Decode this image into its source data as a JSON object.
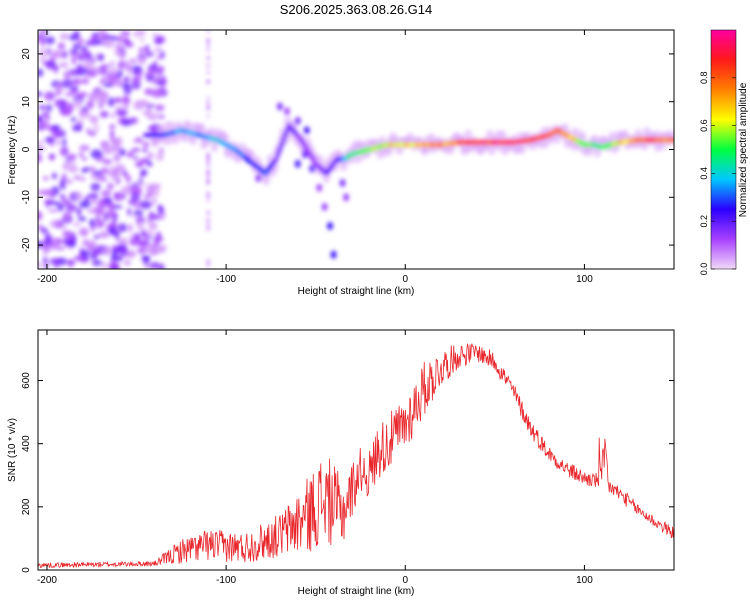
{
  "title": "S206.2025.363.08.26.G14",
  "colors": {
    "line": "#e8262b",
    "axis": "#000000",
    "colorbar_stops": [
      "#f2d9f7",
      "#a640ff",
      "#2a00ff",
      "#00c8ff",
      "#00ff40",
      "#ffff00",
      "#ff7f00",
      "#ff1a1a",
      "#ff00a0"
    ]
  },
  "chart_data": [
    {
      "type": "heatmap",
      "title": "S206.2025.363.08.26.G14",
      "xlabel": "Height of straight line (km)",
      "ylabel": "Frequency (Hz)",
      "xlim": [
        -205,
        150
      ],
      "ylim": [
        -25,
        25
      ],
      "xticks": [
        -200,
        -100,
        0,
        100
      ],
      "yticks": [
        -20,
        -10,
        0,
        10,
        20
      ],
      "colorbar_label": "Normalized spectral amplitude",
      "colorbar_range": [
        0,
        1
      ],
      "colorbar_ticks": [
        "0.0",
        "0.2",
        "0.4",
        "0.6",
        "0.8"
      ],
      "colorbar_tick_values": [
        0,
        0.2,
        0.4,
        0.6,
        0.8
      ],
      "ridge": {
        "x": [
          -145,
          -135,
          -125,
          -115,
          -105,
          -95,
          -85,
          -78,
          -72,
          -65,
          -58,
          -50,
          -44,
          -38,
          -34,
          -30,
          -20,
          -10,
          0,
          10,
          20,
          30,
          40,
          50,
          60,
          70,
          80,
          85,
          90,
          95,
          100,
          105,
          110,
          120,
          130,
          140,
          150
        ],
        "y": [
          3,
          3,
          4,
          3,
          2,
          0,
          -3,
          -5,
          -2,
          5,
          2,
          -3,
          -5,
          -2,
          -2,
          -1,
          0,
          1,
          1,
          1,
          1,
          1.5,
          1.5,
          1.5,
          1.5,
          2,
          3,
          4,
          3,
          2,
          1,
          1,
          0.5,
          1.5,
          2,
          2,
          2
        ],
        "intensity": [
          0.2,
          0.3,
          0.4,
          0.35,
          0.4,
          0.35,
          0.3,
          0.3,
          0.2,
          0.2,
          0.15,
          0.15,
          0.2,
          0.2,
          0.4,
          0.5,
          0.6,
          0.7,
          0.7,
          0.75,
          0.8,
          0.85,
          0.9,
          0.95,
          0.95,
          0.95,
          0.9,
          0.85,
          0.8,
          0.7,
          0.6,
          0.55,
          0.5,
          0.7,
          0.8,
          0.85,
          0.85
        ]
      }
    },
    {
      "type": "line",
      "xlabel": "Height of straight line (km)",
      "ylabel": "SNR (10 * v/v)",
      "xlim": [
        -205,
        150
      ],
      "ylim": [
        0,
        760
      ],
      "xticks": [
        -200,
        -100,
        0,
        100
      ],
      "yticks": [
        0,
        200,
        400,
        600
      ],
      "series": [
        {
          "name": "SNR",
          "envelope_x": [
            -205,
            -140,
            -125,
            -110,
            -90,
            -70,
            -55,
            -45,
            -35,
            -25,
            -20,
            -15,
            -10,
            0,
            10,
            20,
            30,
            40,
            50,
            60,
            70,
            80,
            90,
            100,
            110,
            120,
            130,
            140,
            150
          ],
          "envelope_y": [
            15,
            20,
            60,
            80,
            70,
            110,
            170,
            230,
            180,
            320,
            300,
            380,
            400,
            460,
            570,
            640,
            680,
            690,
            660,
            570,
            450,
            370,
            320,
            290,
            280,
            240,
            190,
            150,
            115
          ],
          "noise_amplitude": [
            8,
            8,
            40,
            50,
            50,
            70,
            120,
            150,
            110,
            70,
            80,
            90,
            90,
            90,
            90,
            60,
            40,
            30,
            30,
            30,
            30,
            25,
            25,
            25,
            25,
            25,
            20,
            20,
            20
          ]
        }
      ]
    }
  ]
}
